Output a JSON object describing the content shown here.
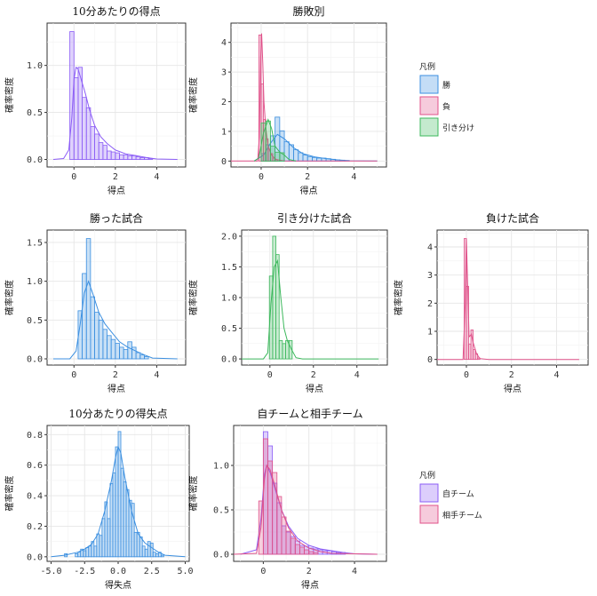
{
  "chart_data": [
    {
      "type": "histogram",
      "title": "10分あたりの得点",
      "xlabel": "得点",
      "ylabel": "確率密度",
      "xlim": [
        -1.3,
        5.4
      ],
      "ylim": [
        -0.08,
        1.45
      ],
      "xticks": [
        "0",
        "2",
        "4"
      ],
      "yticks": [
        "0.0",
        "0.5",
        "1.0"
      ],
      "series": [
        {
          "color": "#8b5cf6",
          "bin_width": 0.2,
          "x": [
            -0.1,
            0.1,
            0.3,
            0.5,
            0.7,
            0.9,
            1.1,
            1.3,
            1.5,
            1.7,
            1.9,
            2.1,
            2.3,
            2.5,
            2.7,
            2.9,
            3.1,
            3.3,
            3.5,
            3.7
          ],
          "values": [
            1.36,
            0.87,
            0.98,
            0.66,
            0.55,
            0.35,
            0.27,
            0.18,
            0.15,
            0.09,
            0.08,
            0.07,
            0.05,
            0.05,
            0.04,
            0.04,
            0.03,
            0.02,
            0.02,
            0.01
          ],
          "density": [
            [
              -1.0,
              0.0
            ],
            [
              -0.5,
              0.01
            ],
            [
              -0.25,
              0.1
            ],
            [
              -0.1,
              0.45
            ],
            [
              0.0,
              0.85
            ],
            [
              0.1,
              0.98
            ],
            [
              0.2,
              0.96
            ],
            [
              0.35,
              0.85
            ],
            [
              0.55,
              0.7
            ],
            [
              0.75,
              0.53
            ],
            [
              1.0,
              0.36
            ],
            [
              1.3,
              0.24
            ],
            [
              1.6,
              0.17
            ],
            [
              2.0,
              0.1
            ],
            [
              2.5,
              0.06
            ],
            [
              3.0,
              0.04
            ],
            [
              3.5,
              0.02
            ],
            [
              4.0,
              0.005
            ],
            [
              5.0,
              0.0
            ]
          ]
        }
      ]
    },
    {
      "type": "histogram",
      "title": "勝敗別",
      "xlabel": "得点",
      "ylabel": "確率密度",
      "xlim": [
        -1.3,
        5.4
      ],
      "ylim": [
        -0.2,
        4.65
      ],
      "xticks": [
        "0",
        "2",
        "4"
      ],
      "yticks": [
        "0",
        "1",
        "2",
        "3",
        "4"
      ],
      "legend": {
        "title": "凡例",
        "position": "right",
        "entries": [
          "勝",
          "負",
          "引き分け"
        ]
      },
      "series": [
        {
          "name": "勝",
          "color": "#3b8fe0",
          "bin_width": 0.2,
          "x": [
            0.1,
            0.3,
            0.5,
            0.7,
            0.9,
            1.1,
            1.3,
            1.5,
            1.7,
            1.9,
            2.1,
            2.3,
            2.5,
            2.7,
            2.9,
            3.1,
            3.3,
            3.5,
            3.7
          ],
          "values": [
            0.25,
            0.55,
            0.85,
            1.48,
            1.02,
            0.65,
            0.55,
            0.38,
            0.28,
            0.2,
            0.15,
            0.12,
            0.1,
            0.1,
            0.08,
            0.06,
            0.04,
            0.03,
            0.02
          ],
          "density": [
            [
              -0.3,
              0.0
            ],
            [
              0.1,
              0.2
            ],
            [
              0.4,
              0.6
            ],
            [
              0.7,
              0.9
            ],
            [
              1.0,
              0.75
            ],
            [
              1.4,
              0.45
            ],
            [
              1.8,
              0.25
            ],
            [
              2.3,
              0.14
            ],
            [
              2.8,
              0.08
            ],
            [
              3.3,
              0.04
            ],
            [
              3.8,
              0.01
            ],
            [
              5.0,
              0.0
            ]
          ]
        },
        {
          "name": "負",
          "color": "#e0528a",
          "bin_width": 0.1,
          "x": [
            -0.05,
            0.05,
            0.15,
            0.25,
            0.35,
            0.45,
            0.55,
            0.65
          ],
          "values": [
            4.25,
            2.6,
            1.4,
            0.75,
            0.4,
            0.25,
            0.1,
            0.05
          ],
          "density": [
            [
              -1.3,
              0.0
            ],
            [
              -0.15,
              0.0
            ],
            [
              -0.08,
              0.8
            ],
            [
              -0.02,
              3.5
            ],
            [
              0.02,
              4.3
            ],
            [
              0.07,
              3.3
            ],
            [
              0.12,
              2.0
            ],
            [
              0.2,
              1.1
            ],
            [
              0.3,
              0.5
            ],
            [
              0.45,
              0.2
            ],
            [
              0.65,
              0.05
            ],
            [
              1.0,
              0.0
            ],
            [
              5.0,
              0.0
            ]
          ]
        },
        {
          "name": "引き分け",
          "color": "#3cb85c",
          "bin_width": 0.2,
          "x": [
            0.1,
            0.3,
            0.5,
            0.7,
            0.9
          ],
          "values": [
            1.28,
            1.35,
            0.5,
            0.3,
            0.28
          ],
          "density": [
            [
              -0.3,
              0.0
            ],
            [
              -0.1,
              0.1
            ],
            [
              0.1,
              0.95
            ],
            [
              0.3,
              1.4
            ],
            [
              0.45,
              1.1
            ],
            [
              0.6,
              0.5
            ],
            [
              0.8,
              0.3
            ],
            [
              1.0,
              0.2
            ],
            [
              1.2,
              0.05
            ],
            [
              1.5,
              0.0
            ]
          ]
        }
      ]
    },
    {
      "type": "histogram",
      "title": "勝った試合",
      "xlabel": "得点",
      "ylabel": "確率密度",
      "xlim": [
        -1.3,
        5.4
      ],
      "ylim": [
        -0.08,
        1.66
      ],
      "xticks": [
        "0",
        "2",
        "4"
      ],
      "yticks": [
        "0.0",
        "0.5",
        "1.0",
        "1.5"
      ],
      "series": [
        {
          "color": "#3b8fe0",
          "bin_width": 0.2,
          "x": [
            0.3,
            0.5,
            0.7,
            0.9,
            1.1,
            1.3,
            1.5,
            1.7,
            1.9,
            2.1,
            2.3,
            2.5,
            2.7,
            2.9,
            3.1,
            3.3,
            3.5
          ],
          "values": [
            0.62,
            1.1,
            1.55,
            0.8,
            0.6,
            0.5,
            0.38,
            0.3,
            0.25,
            0.2,
            0.15,
            0.12,
            0.22,
            0.15,
            0.08,
            0.05,
            0.03
          ],
          "density": [
            [
              -1.0,
              0.0
            ],
            [
              -0.2,
              0.0
            ],
            [
              0.1,
              0.1
            ],
            [
              0.3,
              0.45
            ],
            [
              0.5,
              0.85
            ],
            [
              0.7,
              1.0
            ],
            [
              0.9,
              0.85
            ],
            [
              1.2,
              0.6
            ],
            [
              1.5,
              0.45
            ],
            [
              1.8,
              0.35
            ],
            [
              2.2,
              0.22
            ],
            [
              2.6,
              0.15
            ],
            [
              3.0,
              0.1
            ],
            [
              3.4,
              0.05
            ],
            [
              3.8,
              0.01
            ],
            [
              5.0,
              0.0
            ]
          ]
        }
      ]
    },
    {
      "type": "histogram",
      "title": "引き分けた試合",
      "xlabel": "得点",
      "ylabel": "確率密度",
      "xlim": [
        -1.3,
        5.4
      ],
      "ylim": [
        -0.1,
        2.1
      ],
      "xticks": [
        "0",
        "2",
        "4"
      ],
      "yticks": [
        "0.0",
        "0.5",
        "1.0",
        "1.5",
        "2.0"
      ],
      "series": [
        {
          "color": "#3cb85c",
          "bin_width": 0.15,
          "x": [
            0.05,
            0.2,
            0.35,
            0.5,
            0.65,
            0.8,
            0.95
          ],
          "values": [
            1.35,
            2.0,
            1.7,
            0.3,
            0.25,
            0.3,
            0.3
          ],
          "density": [
            [
              -1.3,
              0.0
            ],
            [
              -0.3,
              0.0
            ],
            [
              -0.1,
              0.1
            ],
            [
              0.05,
              0.9
            ],
            [
              0.2,
              1.5
            ],
            [
              0.35,
              1.6
            ],
            [
              0.5,
              1.0
            ],
            [
              0.65,
              0.5
            ],
            [
              0.8,
              0.3
            ],
            [
              1.0,
              0.15
            ],
            [
              1.2,
              0.02
            ],
            [
              1.5,
              0.0
            ],
            [
              5.0,
              0.0
            ]
          ]
        }
      ]
    },
    {
      "type": "histogram",
      "title": "負けた試合",
      "xlabel": "得点",
      "ylabel": "確率密度",
      "xlim": [
        -1.3,
        5.4
      ],
      "ylim": [
        -0.2,
        4.6
      ],
      "xticks": [
        "0",
        "2",
        "4"
      ],
      "yticks": [
        "0",
        "1",
        "2",
        "3",
        "4"
      ],
      "series": [
        {
          "color": "#e0528a",
          "bin_width": 0.1,
          "x": [
            -0.05,
            0.05,
            0.15,
            0.25,
            0.35,
            0.45,
            0.55
          ],
          "values": [
            4.3,
            2.6,
            0.55,
            1.05,
            0.35,
            0.2,
            0.05
          ],
          "density": [
            [
              -1.3,
              0.0
            ],
            [
              -0.15,
              0.0
            ],
            [
              -0.05,
              2.0
            ],
            [
              0.0,
              4.3
            ],
            [
              0.05,
              2.8
            ],
            [
              0.12,
              0.8
            ],
            [
              0.22,
              0.9
            ],
            [
              0.3,
              0.6
            ],
            [
              0.45,
              0.2
            ],
            [
              0.6,
              0.03
            ],
            [
              1.0,
              0.0
            ],
            [
              5.0,
              0.0
            ]
          ]
        }
      ]
    },
    {
      "type": "histogram",
      "title": "10分あたりの得失点",
      "xlabel": "得失点",
      "ylabel": "確率密度",
      "xlim": [
        -5.3,
        5.3
      ],
      "ylim": [
        -0.03,
        0.86
      ],
      "xticks": [
        "-5.0",
        "-2.5",
        "0.0",
        "2.5",
        "5.0"
      ],
      "yticks": [
        "0.0",
        "0.2",
        "0.4",
        "0.6",
        "0.8"
      ],
      "series": [
        {
          "color": "#3b8fe0",
          "bin_width": 0.2,
          "x": [
            -3.9,
            -3.1,
            -2.9,
            -2.7,
            -2.5,
            -2.3,
            -2.1,
            -1.9,
            -1.7,
            -1.5,
            -1.3,
            -1.1,
            -0.9,
            -0.7,
            -0.5,
            -0.3,
            -0.1,
            0.1,
            0.3,
            0.5,
            0.7,
            0.9,
            1.1,
            1.3,
            1.5,
            1.7,
            1.9,
            2.1,
            2.3,
            2.5,
            2.7,
            2.9,
            3.1,
            3.3
          ],
          "values": [
            0.02,
            0.02,
            0.03,
            0.05,
            0.04,
            0.06,
            0.07,
            0.1,
            0.07,
            0.15,
            0.14,
            0.25,
            0.36,
            0.25,
            0.48,
            0.55,
            0.72,
            0.82,
            0.58,
            0.49,
            0.44,
            0.37,
            0.35,
            0.16,
            0.16,
            0.13,
            0.07,
            0.05,
            0.1,
            0.09,
            0.03,
            0.02,
            0.03,
            0.01
          ],
          "density": [
            [
              -5.0,
              0.0
            ],
            [
              -4.0,
              0.01
            ],
            [
              -3.0,
              0.03
            ],
            [
              -2.5,
              0.05
            ],
            [
              -2.0,
              0.08
            ],
            [
              -1.5,
              0.15
            ],
            [
              -1.0,
              0.3
            ],
            [
              -0.5,
              0.5
            ],
            [
              -0.2,
              0.65
            ],
            [
              0.0,
              0.72
            ],
            [
              0.2,
              0.68
            ],
            [
              0.5,
              0.52
            ],
            [
              1.0,
              0.3
            ],
            [
              1.5,
              0.15
            ],
            [
              2.0,
              0.09
            ],
            [
              2.5,
              0.06
            ],
            [
              3.0,
              0.03
            ],
            [
              3.5,
              0.01
            ],
            [
              5.0,
              0.0
            ]
          ]
        }
      ]
    },
    {
      "type": "histogram",
      "title": "自チームと相手チーム",
      "xlabel": "得点",
      "ylabel": "確率密度",
      "xlim": [
        -1.3,
        5.4
      ],
      "ylim": [
        -0.08,
        1.45
      ],
      "xticks": [
        "0",
        "2",
        "4"
      ],
      "yticks": [
        "0.0",
        "0.5",
        "1.0"
      ],
      "legend": {
        "title": "凡例",
        "position": "right",
        "entries": [
          "自チーム",
          "相手チーム"
        ]
      },
      "series": [
        {
          "name": "自チーム",
          "color": "#8b5cf6",
          "bin_width": 0.2,
          "x": [
            0.1,
            0.3,
            0.5,
            0.7,
            0.9,
            1.1,
            1.3,
            1.5,
            1.7,
            1.9,
            2.1,
            2.3,
            2.5,
            2.7,
            2.9,
            3.1,
            3.3,
            3.5
          ],
          "values": [
            1.38,
            1.22,
            0.8,
            0.58,
            0.32,
            0.25,
            0.2,
            0.15,
            0.1,
            0.09,
            0.07,
            0.06,
            0.05,
            0.04,
            0.04,
            0.03,
            0.02,
            0.02
          ],
          "density": [
            [
              -1.0,
              0.0
            ],
            [
              -0.3,
              0.05
            ],
            [
              -0.1,
              0.4
            ],
            [
              0.05,
              0.9
            ],
            [
              0.15,
              1.0
            ],
            [
              0.3,
              0.92
            ],
            [
              0.5,
              0.75
            ],
            [
              0.8,
              0.5
            ],
            [
              1.1,
              0.32
            ],
            [
              1.5,
              0.18
            ],
            [
              2.0,
              0.1
            ],
            [
              2.5,
              0.06
            ],
            [
              3.0,
              0.04
            ],
            [
              3.5,
              0.02
            ],
            [
              4.0,
              0.005
            ],
            [
              5.0,
              0.0
            ]
          ]
        },
        {
          "name": "相手チーム",
          "color": "#e0528a",
          "bin_width": 0.2,
          "x": [
            -0.1,
            0.1,
            0.3,
            0.5,
            0.7,
            0.9,
            1.1,
            1.3,
            1.5,
            1.7,
            1.9,
            2.1,
            2.3
          ],
          "values": [
            0.6,
            1.3,
            1.05,
            0.92,
            0.65,
            0.42,
            0.26,
            0.18,
            0.11,
            0.08,
            0.05,
            0.03,
            0.02
          ],
          "density": [
            [
              -1.3,
              0.0
            ],
            [
              -0.3,
              0.01
            ],
            [
              -0.1,
              0.3
            ],
            [
              0.05,
              0.85
            ],
            [
              0.15,
              1.0
            ],
            [
              0.3,
              0.95
            ],
            [
              0.5,
              0.78
            ],
            [
              0.8,
              0.5
            ],
            [
              1.1,
              0.3
            ],
            [
              1.5,
              0.15
            ],
            [
              2.0,
              0.07
            ],
            [
              2.5,
              0.03
            ],
            [
              3.0,
              0.01
            ],
            [
              5.0,
              0.0
            ]
          ]
        }
      ]
    }
  ]
}
